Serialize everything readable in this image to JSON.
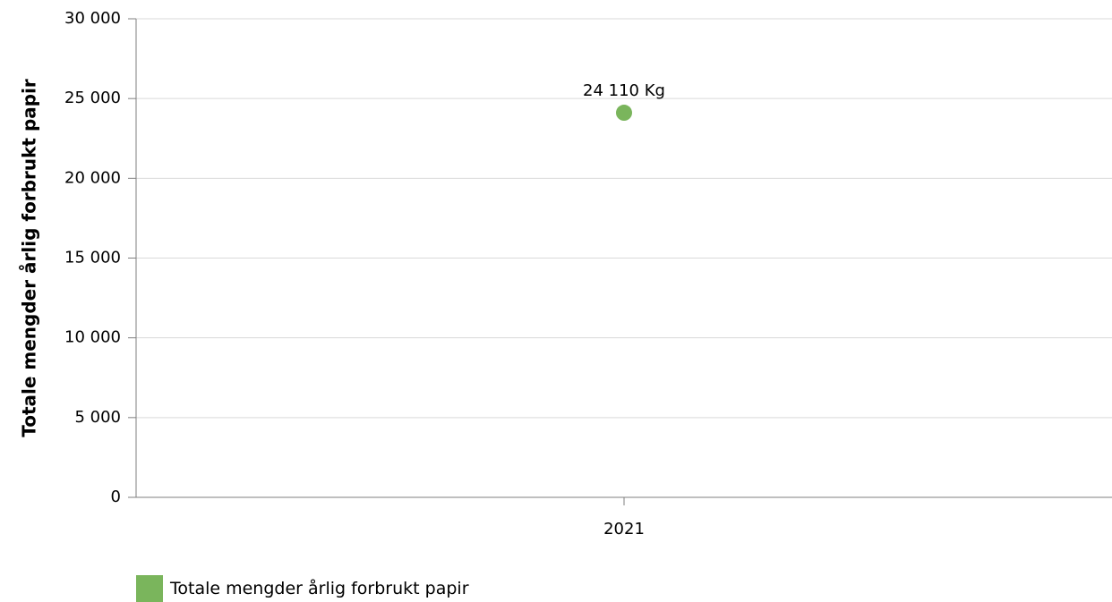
{
  "chart_data": {
    "type": "scatter",
    "categories": [
      "2021"
    ],
    "series": [
      {
        "name": "Totale mengder årlig forbrukt papir",
        "values": [
          24110
        ],
        "data_labels": [
          "24 110 Kg"
        ],
        "color": "#7ab55c"
      }
    ],
    "title": "",
    "xlabel": "",
    "ylabel": "Totale mengder årlig forbrukt papir",
    "ylim": [
      0,
      30000
    ],
    "yticks": [
      0,
      5000,
      10000,
      15000,
      20000,
      25000,
      30000
    ],
    "ytick_labels": [
      "0",
      "5 000",
      "10 000",
      "15 000",
      "20 000",
      "25 000",
      "30 000"
    ],
    "grid": "horizontal",
    "legend_position": "bottom-left"
  }
}
